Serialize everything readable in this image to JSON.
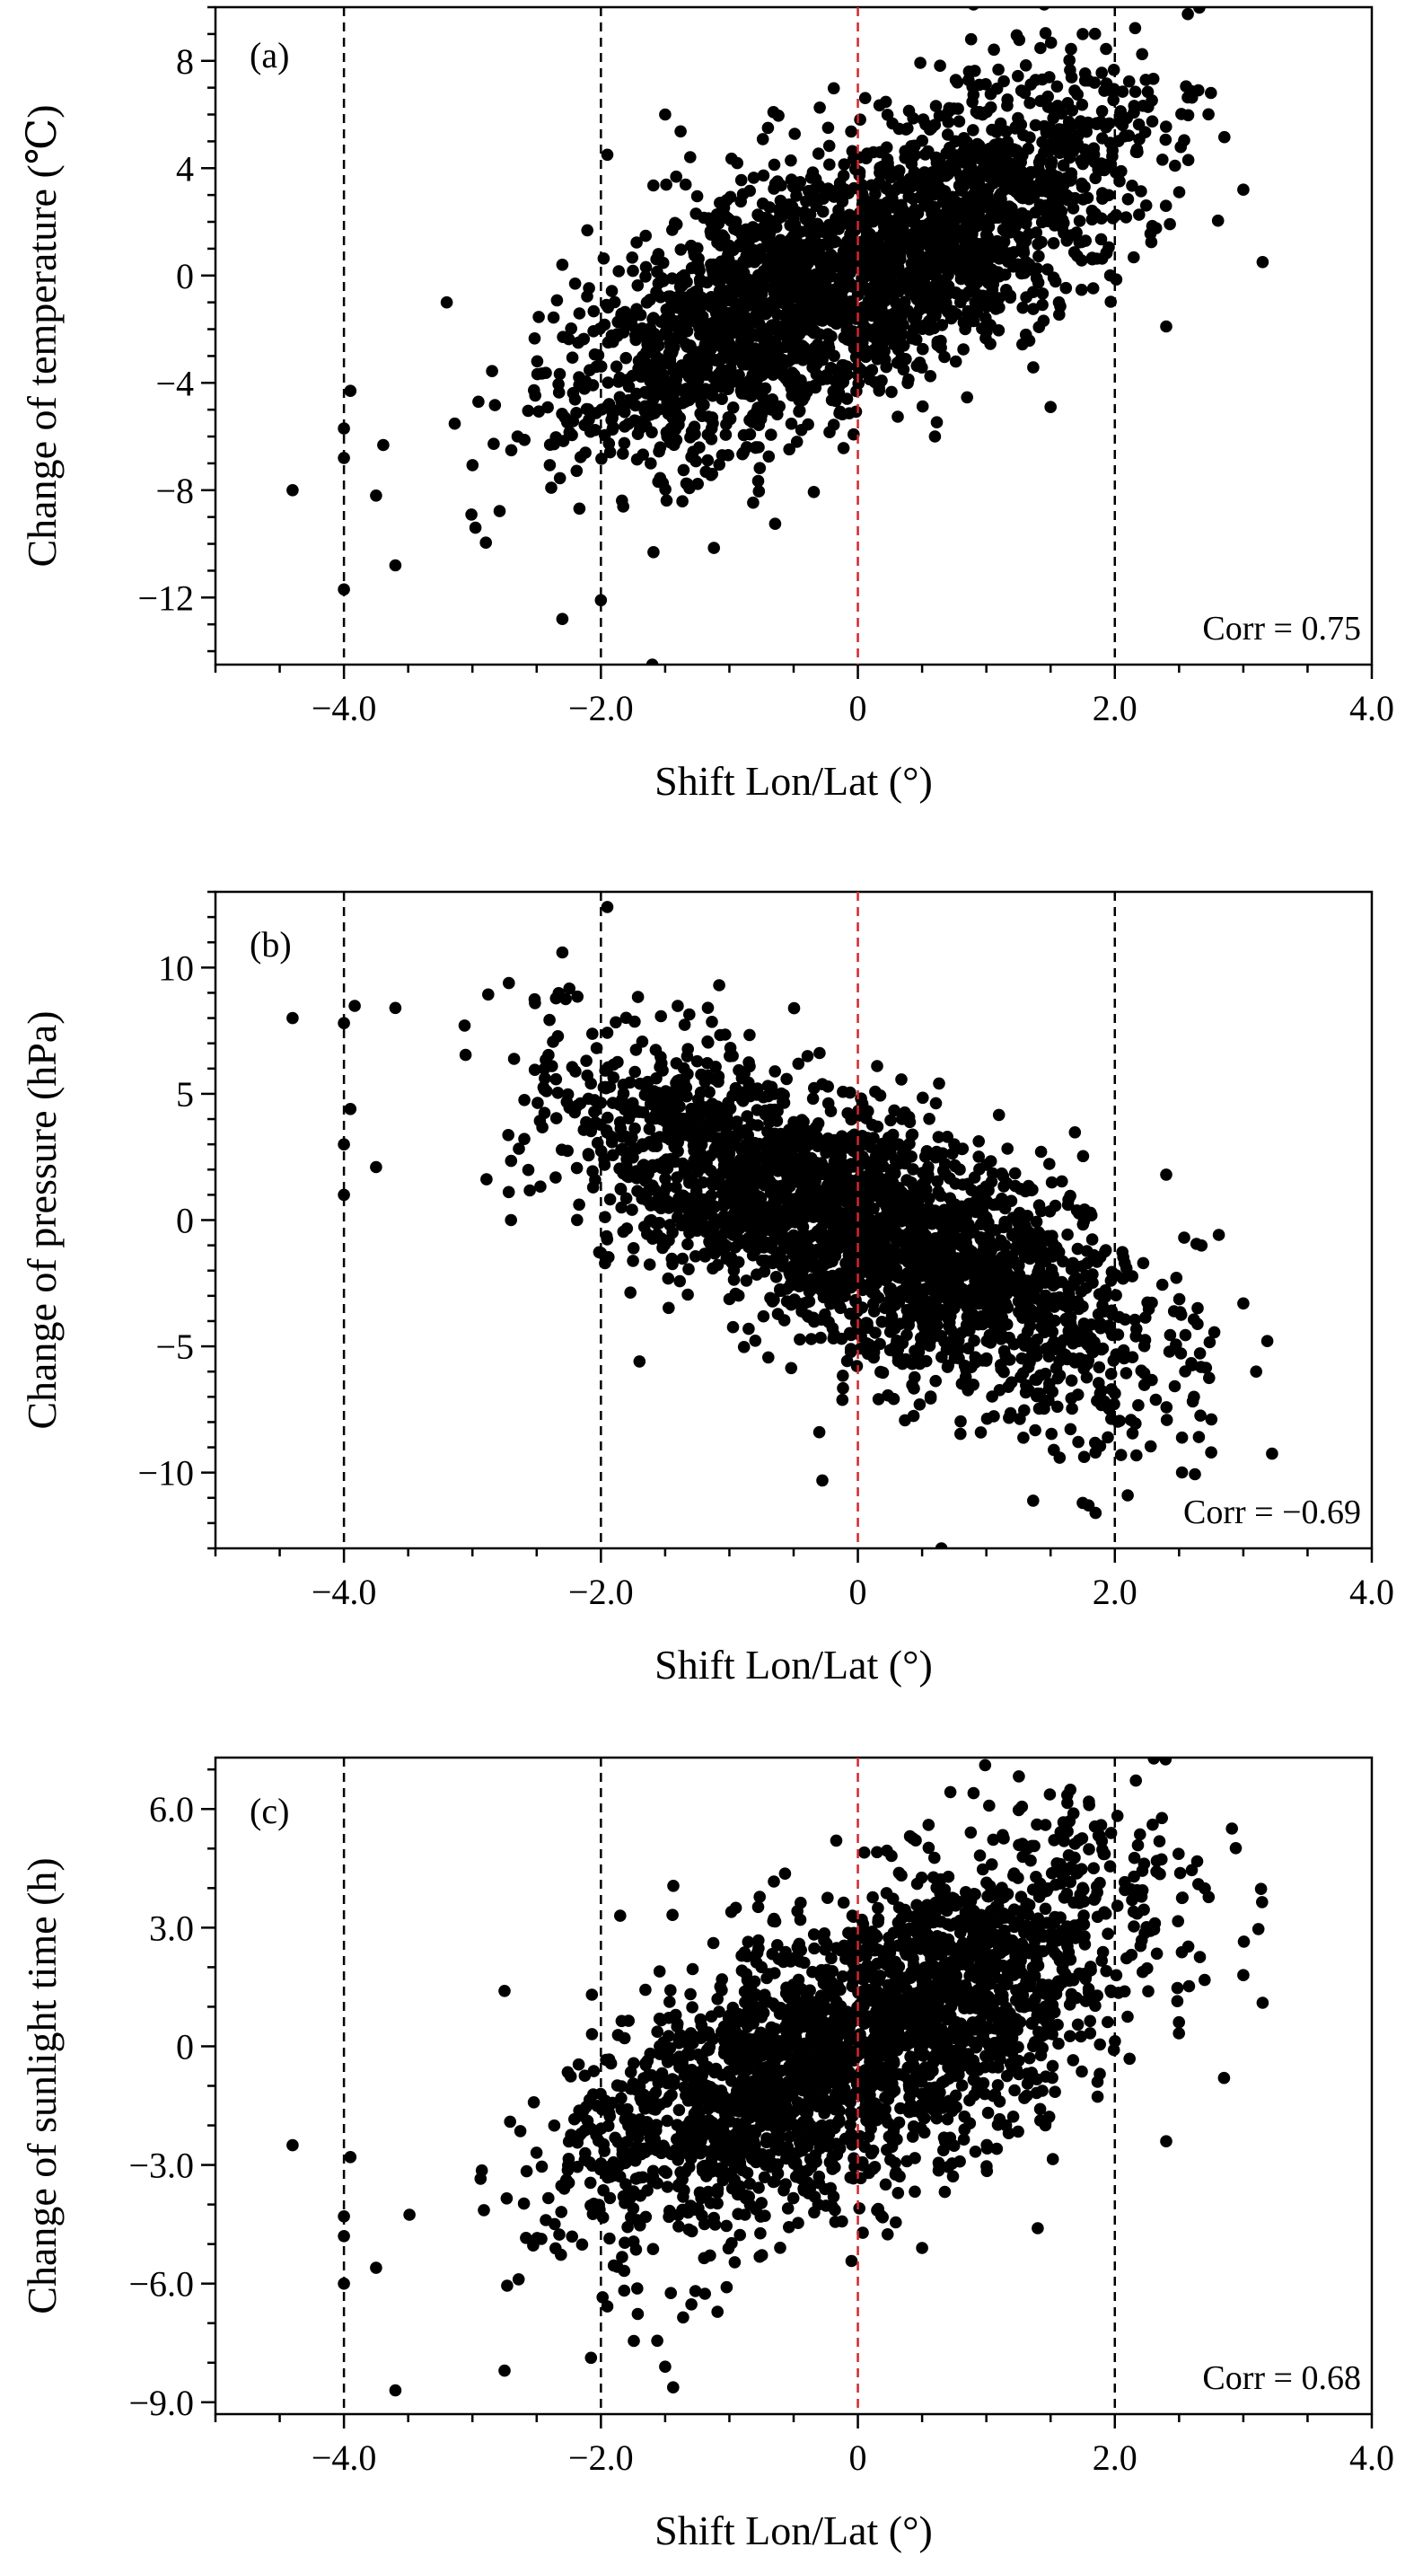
{
  "figure": {
    "panels": [
      "(a)",
      "(b)",
      "(c)"
    ]
  },
  "chart_data": [
    {
      "type": "scatter",
      "panel_label": "(a)",
      "xlabel": "Shift Lon/Lat (°)",
      "ylabel": "Change of  temperature (℃)",
      "annotation": "Corr = 0.75",
      "xlim": [
        -5,
        4
      ],
      "ylim": [
        -14.5,
        10
      ],
      "xticks": [
        -4,
        -2,
        0,
        2,
        4
      ],
      "xtick_labels": [
        "−4.0",
        "−2.0",
        "0",
        "2.0",
        "4.0"
      ],
      "yticks": [
        -12,
        -8,
        -4,
        0,
        4,
        8
      ],
      "ytick_labels": [
        "−12",
        "−8",
        "−4",
        "0",
        "4",
        "8"
      ],
      "y_minor_step": 1,
      "x_minor_step": 0.5,
      "vlines": [
        {
          "x": -4,
          "color": "#000000"
        },
        {
          "x": -2,
          "color": "#000000"
        },
        {
          "x": 0,
          "color": "#d62728"
        },
        {
          "x": 2,
          "color": "#000000"
        }
      ],
      "trend": {
        "slope": 2.1,
        "intercept": 0.2,
        "noise": 2.4
      },
      "n_points": 2600,
      "marker_color": "#000000",
      "points": [
        [
          -4.4,
          -8.0
        ],
        [
          -4.0,
          -11.7
        ],
        [
          -4.0,
          -6.8
        ],
        [
          -4.0,
          -5.7
        ],
        [
          -3.95,
          -4.3
        ],
        [
          -3.75,
          -8.2
        ],
        [
          -3.6,
          -10.8
        ],
        [
          -2.3,
          -12.8
        ],
        [
          -2.0,
          -12.1
        ],
        [
          -1.6,
          -14.5
        ],
        [
          0.9,
          10.1
        ],
        [
          1.45,
          10.1
        ],
        [
          1.75,
          9.0
        ],
        [
          2.65,
          6.9
        ],
        [
          3.15,
          0.5
        ],
        [
          3.0,
          3.2
        ],
        [
          2.4,
          -1.9
        ],
        [
          1.5,
          -4.9
        ],
        [
          0.6,
          -6.0
        ],
        [
          -2.3,
          0.4
        ],
        [
          -3.2,
          -1.0
        ],
        [
          -1.95,
          4.5
        ],
        [
          -1.5,
          6.0
        ],
        [
          -0.7,
          5.5
        ]
      ]
    },
    {
      "type": "scatter",
      "panel_label": "(b)",
      "xlabel": "Shift Lon/Lat (°)",
      "ylabel": "Change of pressure (hPa)",
      "annotation": "Corr = −0.69",
      "xlim": [
        -5,
        4
      ],
      "ylim": [
        -13,
        13
      ],
      "xticks": [
        -4,
        -2,
        0,
        2,
        4
      ],
      "xtick_labels": [
        "−4.0",
        "−2.0",
        "0",
        "2.0",
        "4.0"
      ],
      "yticks": [
        -10,
        -5,
        0,
        5,
        10
      ],
      "ytick_labels": [
        "−10",
        "−5",
        "0",
        "5",
        "10"
      ],
      "y_minor_step": 1,
      "x_minor_step": 0.5,
      "vlines": [
        {
          "x": -4,
          "color": "#000000"
        },
        {
          "x": -2,
          "color": "#000000"
        },
        {
          "x": 0,
          "color": "#d62728"
        },
        {
          "x": 2,
          "color": "#000000"
        }
      ],
      "trend": {
        "slope": -2.0,
        "intercept": -0.3,
        "noise": 2.4
      },
      "n_points": 2600,
      "marker_color": "#000000",
      "points": [
        [
          -4.4,
          8.0
        ],
        [
          -4.0,
          7.8
        ],
        [
          -4.0,
          3.0
        ],
        [
          -4.0,
          1.0
        ],
        [
          -3.95,
          4.4
        ],
        [
          -3.75,
          2.1
        ],
        [
          -3.6,
          8.4
        ],
        [
          -2.3,
          10.6
        ],
        [
          -1.95,
          12.4
        ],
        [
          -2.7,
          0.0
        ],
        [
          -2.0,
          -1.3
        ],
        [
          -1.7,
          -5.6
        ],
        [
          0.65,
          -13.0
        ],
        [
          1.85,
          -11.6
        ],
        [
          1.75,
          -11.2
        ],
        [
          2.1,
          -10.9
        ],
        [
          2.75,
          -9.2
        ],
        [
          3.1,
          -6.0
        ],
        [
          3.0,
          -3.3
        ],
        [
          2.4,
          1.8
        ],
        [
          -0.3,
          -8.4
        ],
        [
          0.75,
          3.0
        ],
        [
          0.15,
          6.1
        ]
      ]
    },
    {
      "type": "scatter",
      "panel_label": "(c)",
      "xlabel": "Shift Lon/Lat (°)",
      "ylabel": "Change of sunlight time (h)",
      "annotation": "Corr = 0.68",
      "xlim": [
        -5,
        4
      ],
      "ylim": [
        -9.3,
        7.3
      ],
      "xticks": [
        -4,
        -2,
        0,
        2,
        4
      ],
      "xtick_labels": [
        "−4.0",
        "−2.0",
        "0",
        "2.0",
        "4.0"
      ],
      "yticks": [
        -9,
        -6,
        -3,
        0,
        3,
        6
      ],
      "ytick_labels": [
        "−9.0",
        "−6.0",
        "−3.0",
        "0",
        "3.0",
        "6.0"
      ],
      "y_minor_step": 1,
      "x_minor_step": 0.5,
      "vlines": [
        {
          "x": -4,
          "color": "#000000"
        },
        {
          "x": -2,
          "color": "#000000"
        },
        {
          "x": 0,
          "color": "#d62728"
        },
        {
          "x": 2,
          "color": "#000000"
        }
      ],
      "trend": {
        "slope": 1.45,
        "intercept": 0.1,
        "noise": 1.8
      },
      "n_points": 2600,
      "marker_color": "#000000",
      "points": [
        [
          -4.4,
          -2.5
        ],
        [
          -4.0,
          -4.3
        ],
        [
          -4.0,
          -4.8
        ],
        [
          -4.0,
          -6.0
        ],
        [
          -3.95,
          -2.8
        ],
        [
          -3.75,
          -5.6
        ],
        [
          -3.6,
          -8.7
        ],
        [
          -2.75,
          -8.2
        ],
        [
          -2.75,
          1.4
        ],
        [
          -1.5,
          -8.1
        ],
        [
          0.9,
          6.4
        ],
        [
          0.55,
          5.6
        ],
        [
          1.8,
          6.1
        ],
        [
          2.65,
          4.1
        ],
        [
          3.15,
          1.1
        ],
        [
          3.0,
          1.8
        ],
        [
          2.85,
          -0.8
        ],
        [
          2.4,
          -2.4
        ],
        [
          1.4,
          -4.6
        ],
        [
          0.5,
          -5.1
        ],
        [
          -1.85,
          3.3
        ],
        [
          -0.95,
          3.5
        ],
        [
          0.05,
          4.9
        ]
      ]
    }
  ]
}
